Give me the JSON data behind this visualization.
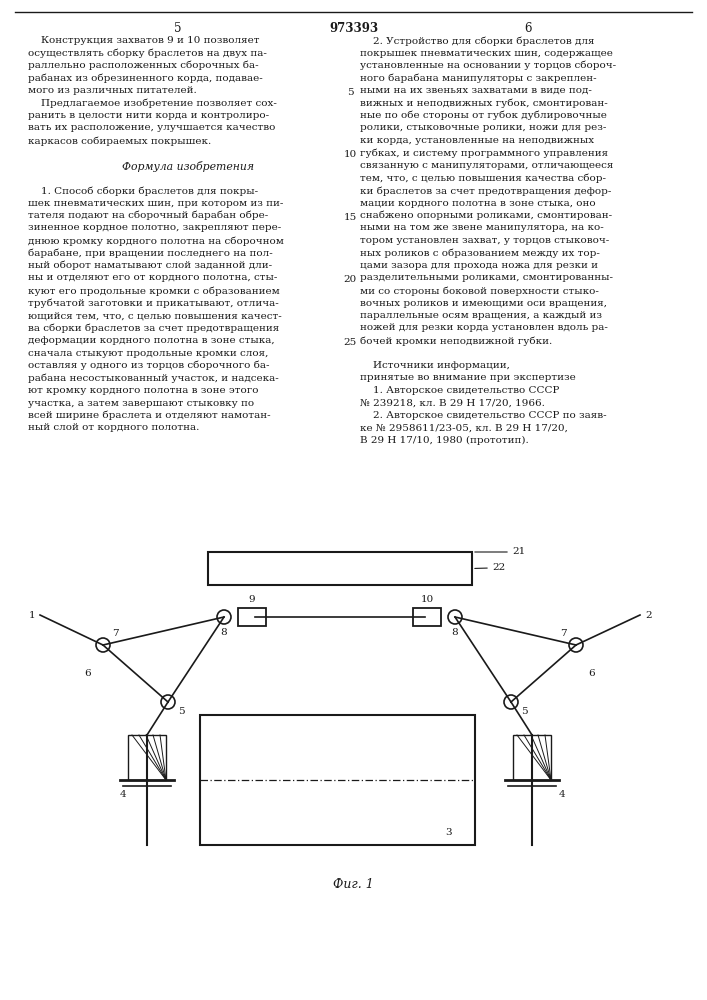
{
  "page_number_center": "973393",
  "col_left_num": "5",
  "col_right_num": "6",
  "text_left": [
    "    Конструкция захватов 9 и 10 позволяет",
    "осуществлять сборку браслетов на двух па-",
    "раллельно расположенных сборочных ба-",
    "рабанах из обрезиненного корда, подавае-",
    "мого из различных питателей.",
    "    Предлагаемое изобретение позволяет сох-",
    "ранить в целости нити корда и контролиро-",
    "вать их расположение, улучшается качество",
    "каркасов собираемых покрышек.",
    "",
    "    Формула изобретения",
    "",
    "    1. Способ сборки браслетов для покры-",
    "шек пневматических шин, при котором из пи-",
    "тателя подают на сборочный барабан обре-",
    "зиненное кордное полотно, закрепляют пере-",
    "днюю кромку кордного полотна на сборочном",
    "барабане, при вращении последнего на пол-",
    "ный оборот наматывают слой заданной дли-",
    "ны и отделяют его от кордного полотна, сты-",
    "куют его продольные кромки с образованием",
    "трубчатой заготовки и прикатывают, отлича-",
    "ющийся тем, что, с целью повышения качест-",
    "ва сборки браслетов за счет предотвращения",
    "деформации кордного полотна в зоне стыка,",
    "сначала стыкуют продольные кромки слоя,",
    "оставляя у одного из торцов сборочного ба-",
    "рабана несостыкованный участок, и надсека-",
    "ют кромку кордного полотна в зоне этого",
    "участка, а затем завершают стыковку по",
    "всей ширине браслета и отделяют намотан-",
    "ный слой от кордного полотна."
  ],
  "text_right": [
    "    2. Устройство для сборки браслетов для",
    "покрышек пневматических шин, содержащее",
    "установленные на основании у торцов сбороч-",
    "ного барабана манипуляторы с закреплен-",
    "ными на их звеньях захватами в виде под-",
    "вижных и неподвижных губок, смонтирован-",
    "ные по обе стороны от губок дублировочные",
    "ролики, стыковочные ролики, ножи для рез-",
    "ки корда, установленные на неподвижных",
    "губках, и систему программного управления",
    "связанную с манипуляторами, отличающееся",
    "тем, что, с целью повышения качества сбор-",
    "ки браслетов за счет предотвращения дефор-",
    "мации кордного полотна в зоне стыка, оно",
    "снабжено опорными роликами, смонтирован-",
    "ными на том же звене манипулятора, на ко-",
    "тором установлен захват, у торцов стыковоч-",
    "ных роликов с образованием между их тор-",
    "цами зазора для прохода ножа для резки и",
    "разделительными роликами, смонтированны-",
    "ми со стороны боковой поверхности стыко-",
    "вочных роликов и имеющими оси вращения,",
    "параллельные осям вращения, а каждый из",
    "ножей для резки корда установлен вдоль ра-",
    "бочей кромки неподвижной губки.",
    "",
    "    Источники информации,",
    "принятые во внимание при экспертизе",
    "    1. Авторское свидетельство СССР",
    "№ 239218, кл. В 29 Н 17/20, 1966.",
    "    2. Авторское свидетельство СССР по заяв-",
    "ке № 2958611/23-05, кл. В 29 Н 17/20,",
    "В 29 Н 17/10, 1980 (прототип)."
  ],
  "italic_word_right": "отличающееся",
  "fig_caption": "Фиг. 1",
  "background_color": "#ffffff",
  "line_color": "#1a1a1a",
  "text_color": "#1a1a1a"
}
